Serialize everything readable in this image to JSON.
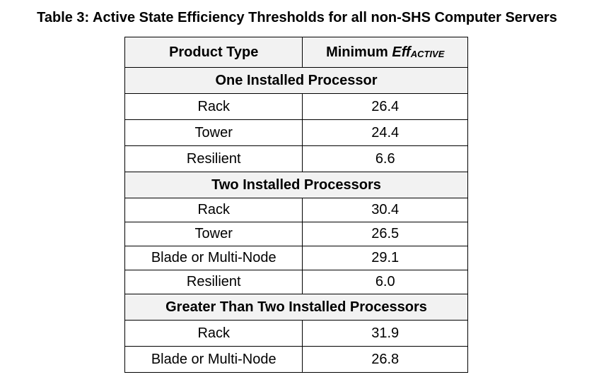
{
  "caption": "Table 3: Active State Efficiency Thresholds for all non-SHS Computer Servers",
  "table": {
    "headers": {
      "product_type": "Product Type",
      "min_eff_prefix": "Minimum ",
      "min_eff_main": "Eff",
      "min_eff_sub": "ACTIVE"
    },
    "groups": [
      {
        "label": "One Installed Processor",
        "rows": [
          {
            "type": "Rack",
            "value": "26.4"
          },
          {
            "type": "Tower",
            "value": "24.4"
          },
          {
            "type": "Resilient",
            "value": "6.6"
          }
        ]
      },
      {
        "label": "Two Installed Processors",
        "rows": [
          {
            "type": "Rack",
            "value": "30.4"
          },
          {
            "type": "Tower",
            "value": "26.5"
          },
          {
            "type": "Blade or Multi-Node",
            "value": "29.1"
          },
          {
            "type": "Resilient",
            "value": "6.0"
          }
        ]
      },
      {
        "label": "Greater Than Two Installed Processors",
        "rows": [
          {
            "type": "Rack",
            "value": "31.9"
          },
          {
            "type": "Blade or Multi-Node",
            "value": "26.8"
          }
        ]
      }
    ]
  }
}
